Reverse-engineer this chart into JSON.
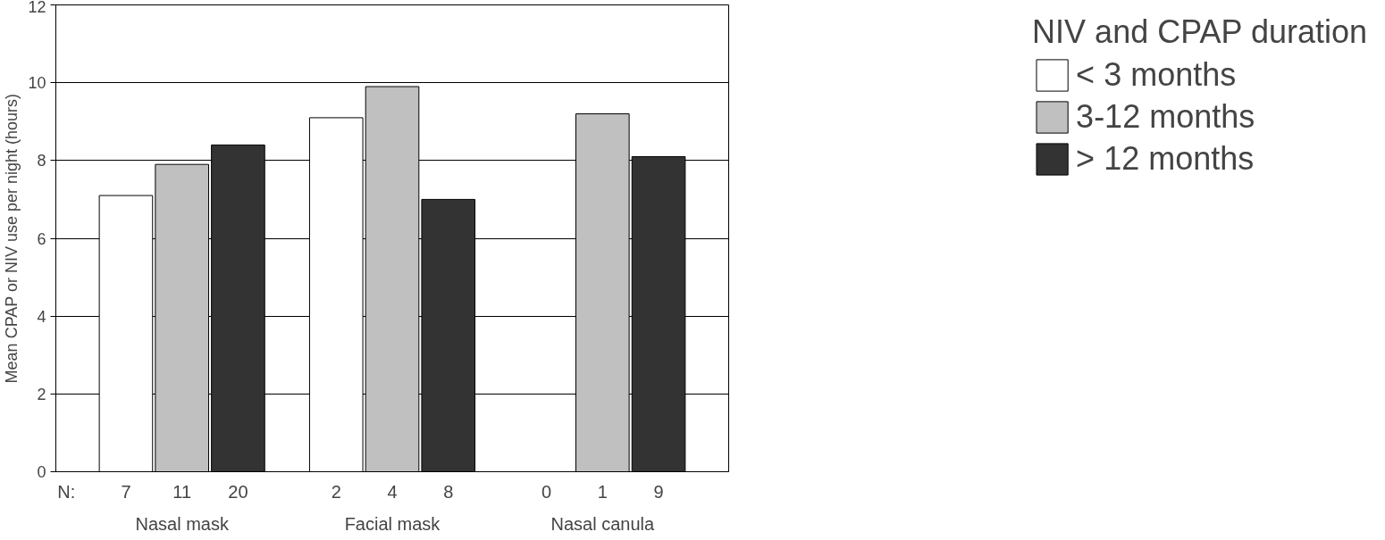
{
  "chart_data": {
    "type": "bar",
    "ylabel": "Mean CPAP or NIV use per night (hours)",
    "legend_title": "NIV and CPAP duration",
    "categories": [
      "Nasal mask",
      "Facial mask",
      "Nasal canula"
    ],
    "series": [
      {
        "name": "< 3 months",
        "color": "#ffffff",
        "values": [
          7.1,
          9.1,
          null
        ]
      },
      {
        "name": "3-12 months",
        "color": "#c0c0c0",
        "values": [
          7.9,
          9.9,
          9.2
        ]
      },
      {
        "name": "> 12 months",
        "color": "#333333",
        "values": [
          8.4,
          7.0,
          8.1
        ]
      }
    ],
    "annotations": [
      "N:",
      "7",
      "11",
      "20",
      "2",
      "4",
      "8",
      "0",
      "1",
      "9"
    ],
    "ylim": [
      0,
      12
    ],
    "yticks": [
      0,
      2,
      4,
      6,
      8,
      10,
      12
    ],
    "grid": "y",
    "legend": "right"
  }
}
